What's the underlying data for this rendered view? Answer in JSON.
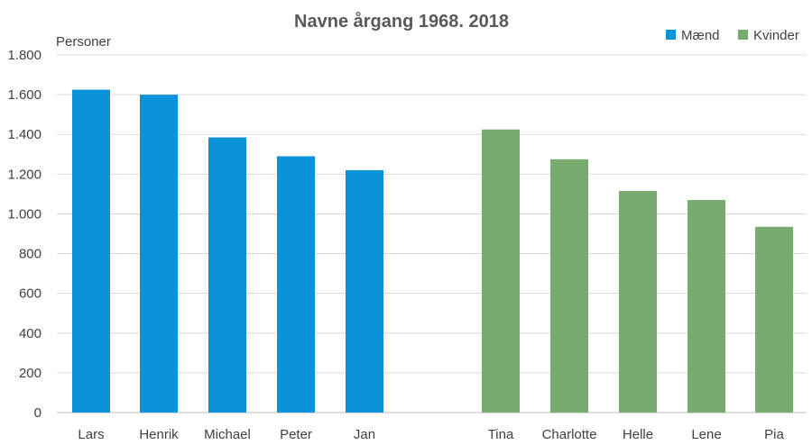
{
  "chart_data": {
    "type": "bar",
    "title": "Navne årgang 1968. 2018",
    "ylabel": "Personer",
    "xlabel": "",
    "ylim": [
      0,
      1800
    ],
    "yticks": [
      0,
      200,
      400,
      600,
      800,
      1000,
      1200,
      1400,
      1600,
      1800
    ],
    "ytick_labels": [
      "0",
      "200",
      "400",
      "600",
      "800",
      "1.000",
      "1.200",
      "1.400",
      "1.600",
      "1.800"
    ],
    "grid": true,
    "legend_position": "top-right",
    "series": [
      {
        "name": "Mænd",
        "color": "#0a93d8",
        "categories": [
          "Lars",
          "Henrik",
          "Michael",
          "Peter",
          "Jan"
        ],
        "values": [
          1625,
          1600,
          1385,
          1290,
          1220
        ]
      },
      {
        "name": "Kvinder",
        "color": "#78ab6e",
        "categories": [
          "Tina",
          "Charlotte",
          "Helle",
          "Lene",
          "Pia"
        ],
        "values": [
          1425,
          1275,
          1115,
          1070,
          935
        ]
      }
    ]
  }
}
